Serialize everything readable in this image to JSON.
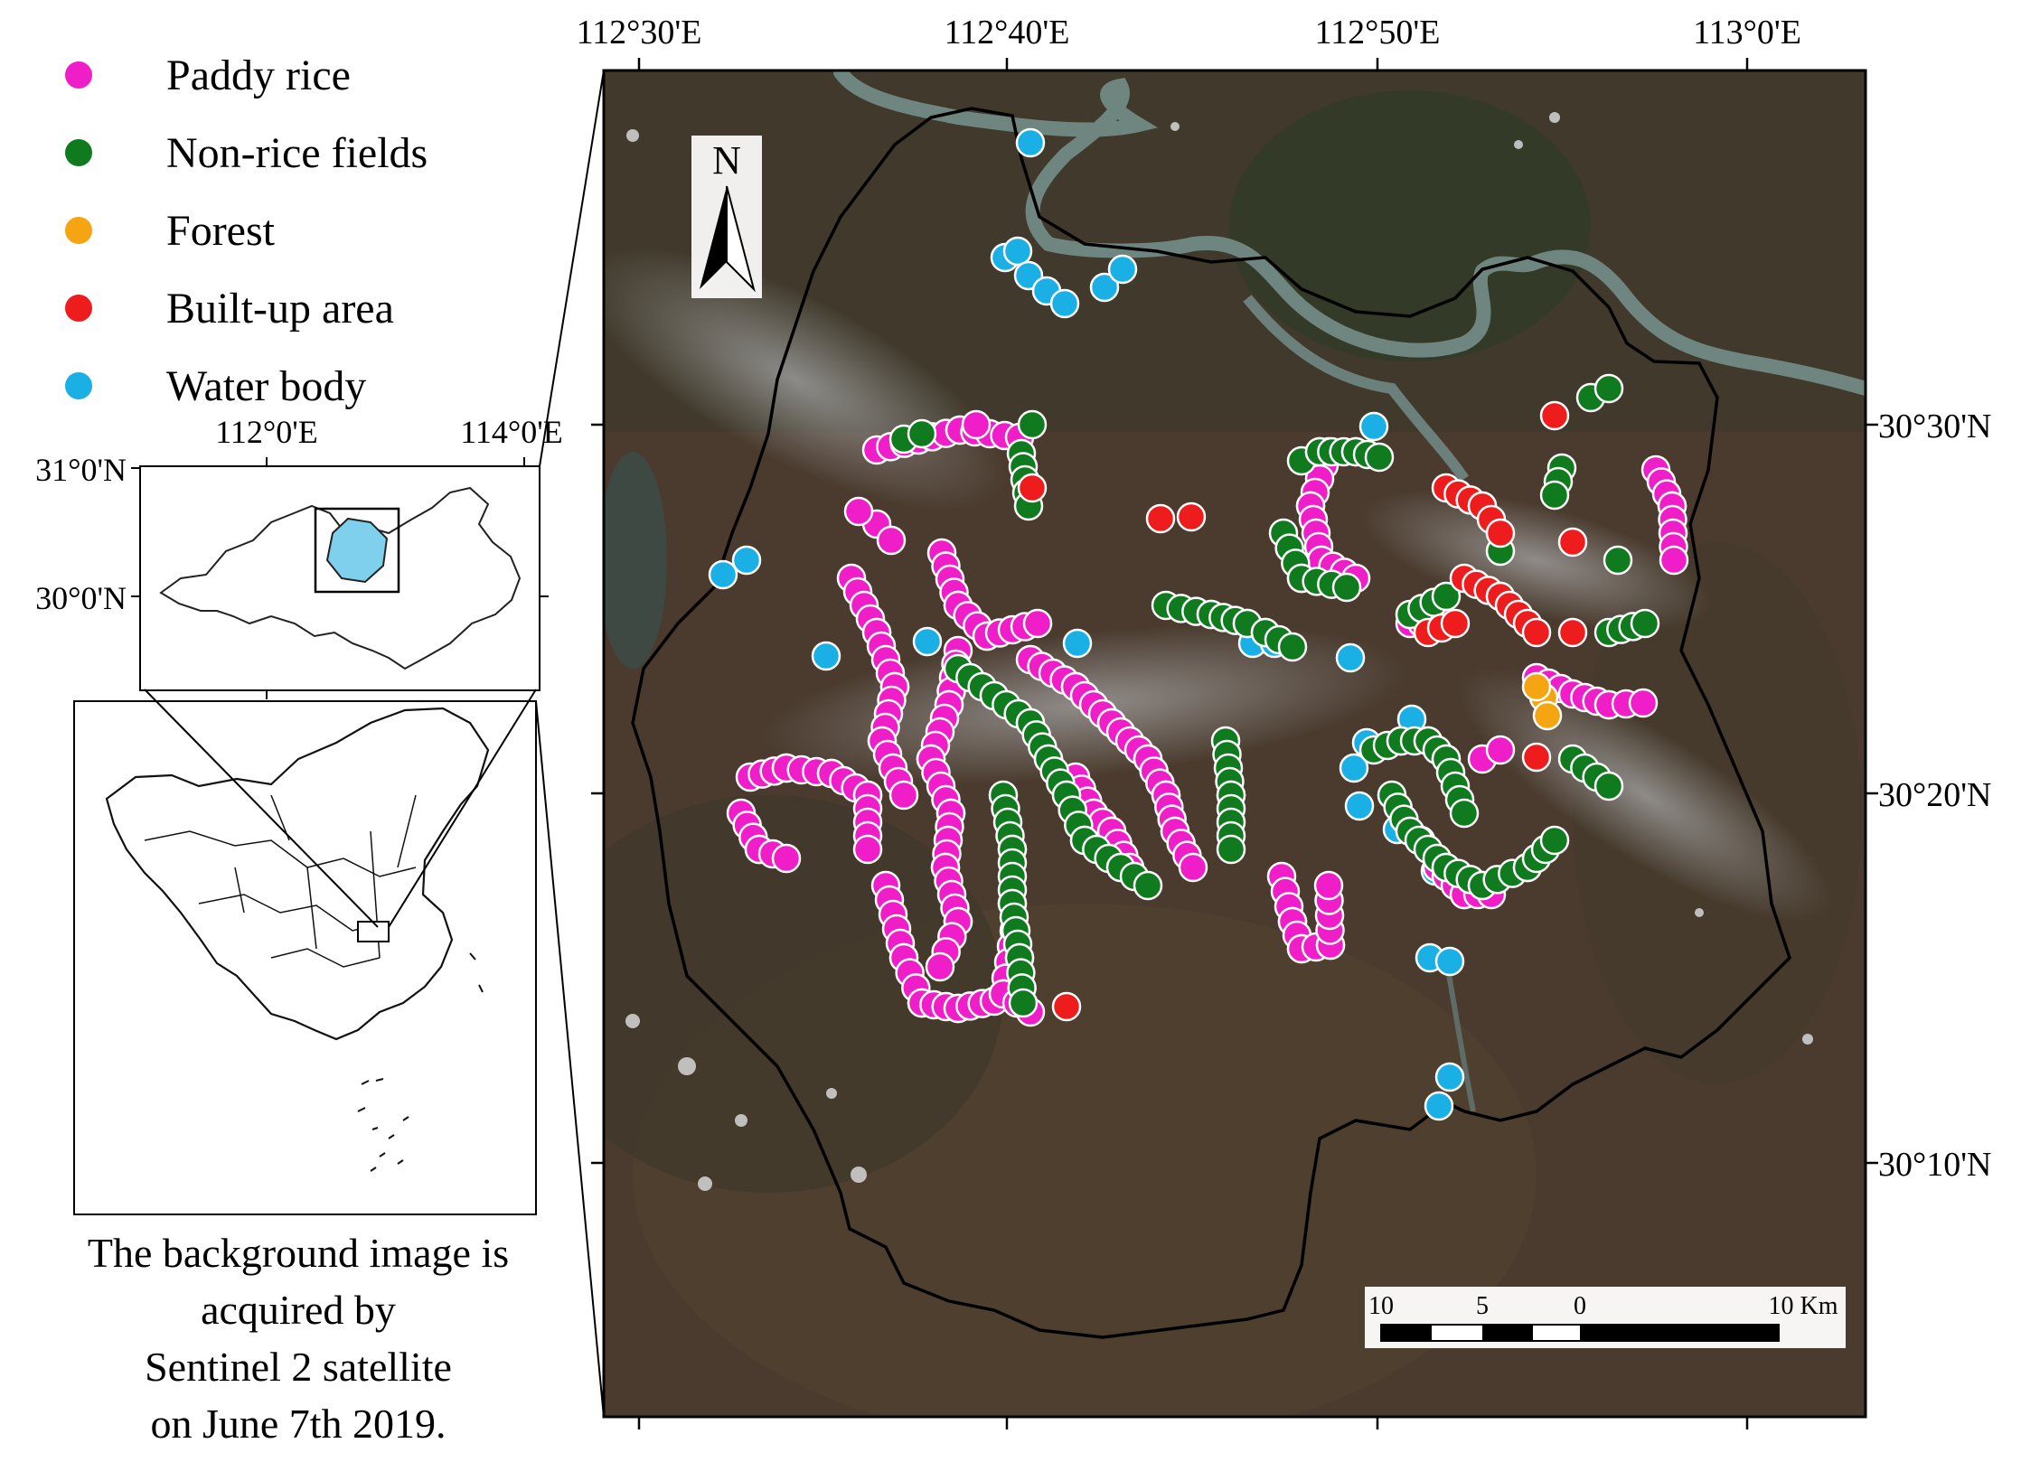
{
  "legend": {
    "items": [
      {
        "label": "Paddy rice",
        "color": "#f01ec8"
      },
      {
        "label": "Non-rice fields",
        "color": "#0f7a1e"
      },
      {
        "label": "Forest",
        "color": "#f5a511"
      },
      {
        "label": "Built-up area",
        "color": "#ee1c1c"
      },
      {
        "label": "Water body",
        "color": "#1ab0e6"
      }
    ]
  },
  "main_map": {
    "lon_ticks": [
      "112°30'E",
      "112°40'E",
      "112°50'E",
      "113°0'E"
    ],
    "lat_ticks": [
      "30°30'N",
      "30°20'N",
      "30°10'N"
    ],
    "north_arrow": "N",
    "scale_bar": {
      "labels": [
        "10",
        "5",
        "0",
        "10 Km"
      ]
    }
  },
  "inset_province": {
    "lon_ticks": [
      "112°0'E",
      "114°0'E"
    ],
    "lat_ticks": [
      "31°0'N",
      "30°0'N"
    ],
    "study_area_color": "#7fd0ec"
  },
  "caption": {
    "lines": [
      "The background image is",
      "acquired by",
      "Sentinel 2 satellite",
      "on June 7th 2019."
    ]
  },
  "map_icons": {
    "north": "north-arrow-icon",
    "scale": "scale-bar-icon"
  }
}
